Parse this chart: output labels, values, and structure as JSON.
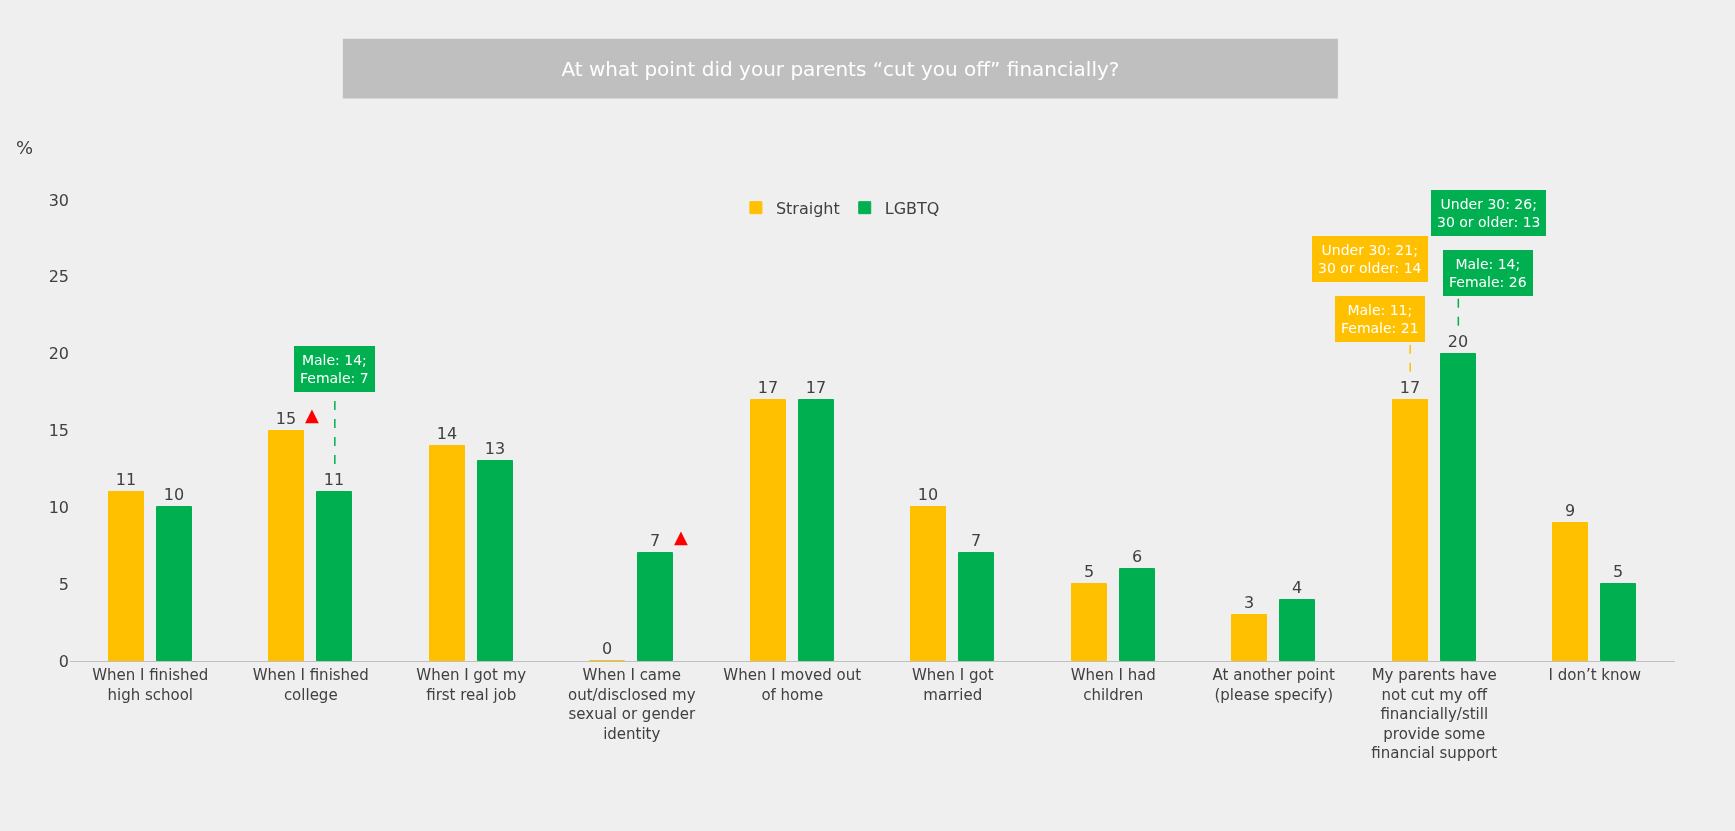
{
  "chart_data": {
    "type": "bar",
    "title": "At what point did your parents “cut you off” financially?",
    "ylabel": "%",
    "categories": [
      "When I finished high school",
      "When I finished college",
      "When I got my first real job",
      "When I came out/disclosed my sexual or gender identity",
      "When I moved out of home",
      "When I got married",
      "When I had children",
      "At another point (please specify)",
      "My parents have not cut my off financially/still provide some financial support",
      "I don’t know"
    ],
    "series": [
      {
        "name": "Straight",
        "color": "#ffc000",
        "values": [
          11,
          15,
          14,
          0,
          17,
          10,
          5,
          3,
          17,
          9
        ]
      },
      {
        "name": "LGBTQ",
        "color": "#00b050",
        "values": [
          10,
          11,
          13,
          7,
          17,
          7,
          6,
          4,
          20,
          5
        ]
      }
    ],
    "annotations": [
      "▲",
      "▲",
      "Male: 14;\nFemale: 7",
      "Male: 11;\nFemale: 21",
      "Under 30: 21;\n30 or older: 14",
      "Male: 14;\nFemale: 26",
      "Under 30: 26;\n30 or older: 13"
    ],
    "ylim": [
      0,
      30
    ],
    "yticks": [
      0,
      5,
      10,
      15,
      20,
      25,
      30
    ],
    "data_labels": true,
    "grid": false,
    "legend": "top"
  }
}
